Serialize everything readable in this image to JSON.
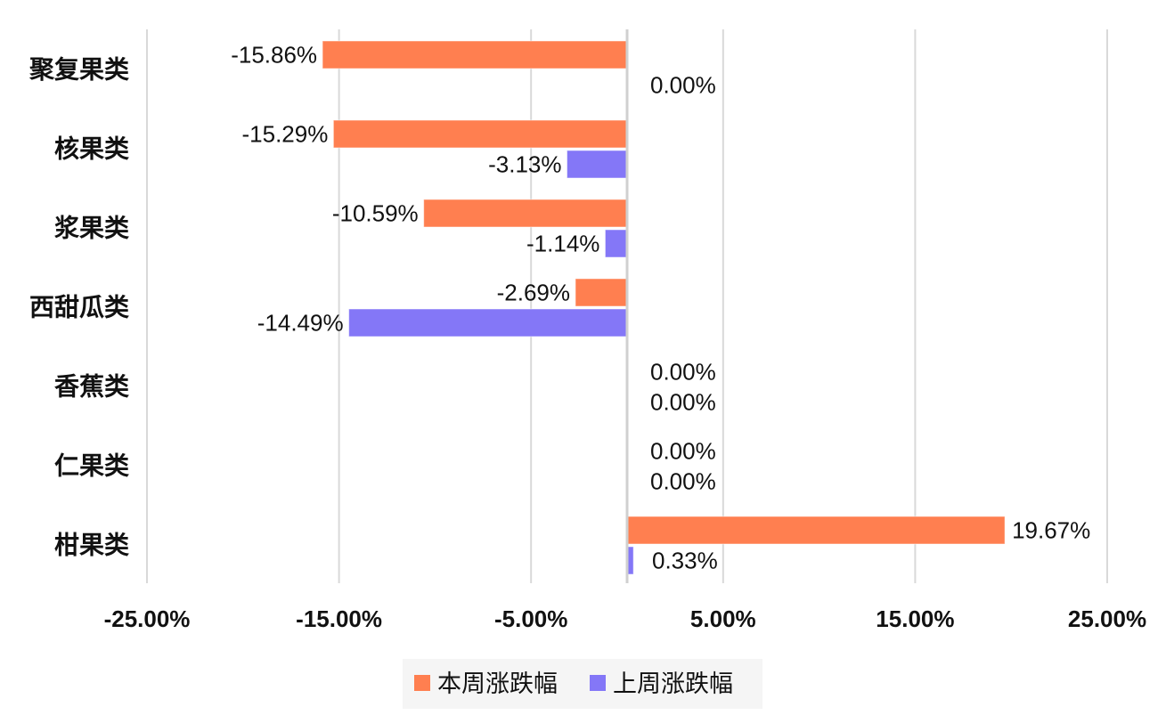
{
  "chart_data": {
    "type": "bar",
    "orientation": "horizontal",
    "categories": [
      "聚复果类",
      "核果类",
      "浆果类",
      "西甜瓜类",
      "香蕉类",
      "仁果类",
      "柑果类"
    ],
    "series": [
      {
        "name": "本周涨跌幅",
        "color": "#ff7f50",
        "values": [
          -15.86,
          -15.29,
          -10.59,
          -2.69,
          0.0,
          0.0,
          19.67
        ],
        "labels": [
          "-15.86%",
          "-15.29%",
          "-10.59%",
          "-2.69%",
          "0.00%",
          "0.00%",
          "19.67%"
        ]
      },
      {
        "name": "上周涨跌幅",
        "color": "#8477f7",
        "values": [
          null,
          -3.13,
          -1.14,
          -14.49,
          0.0,
          0.0,
          0.33
        ],
        "labels": [
          "0.00%",
          "-3.13%",
          "-1.14%",
          "-14.49%",
          "0.00%",
          "0.00%",
          "0.33%"
        ]
      }
    ],
    "xlim": [
      -25,
      25
    ],
    "xticks": [
      -25,
      -15,
      -5,
      5,
      15,
      25
    ],
    "xtick_labels": [
      "-25.00%",
      "-15.00%",
      "-5.00%",
      "5.00%",
      "15.00%",
      "25.00%"
    ],
    "grid": true,
    "legend_position": "bottom"
  }
}
